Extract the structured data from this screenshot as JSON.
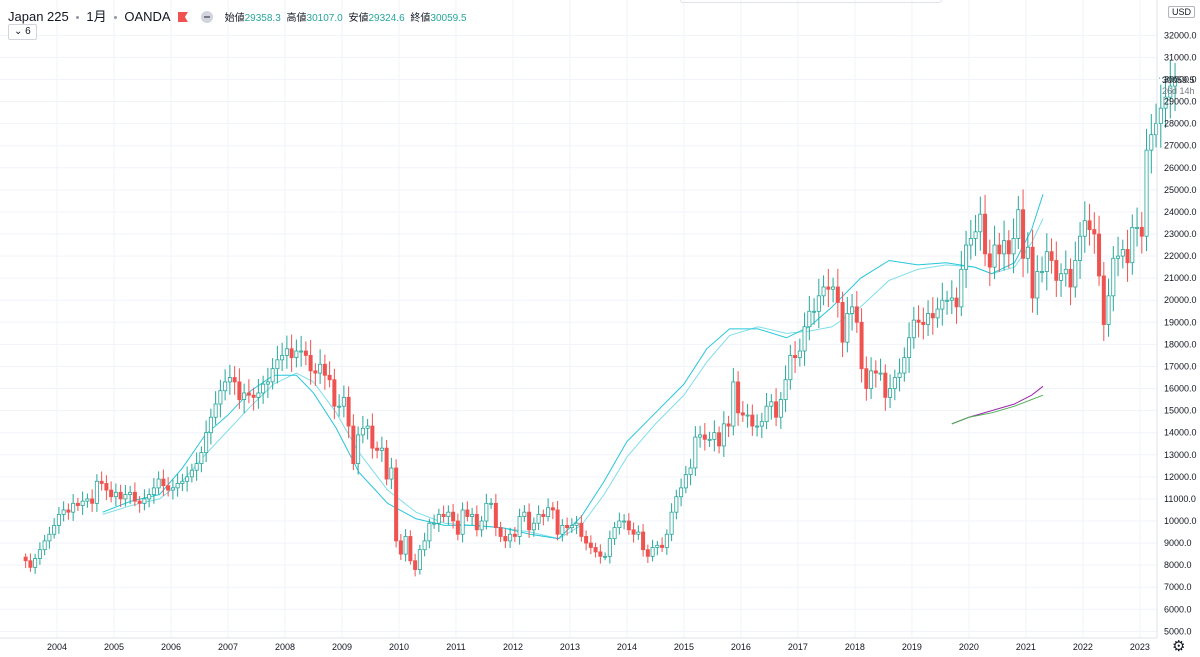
{
  "legend": {
    "symbol": "Japan 225",
    "interval": "1月",
    "broker": "OANDA",
    "open_label": "始値",
    "open_value": "29358.3",
    "high_label": "高値",
    "high_value": "30107.0",
    "low_label": "安値",
    "low_value": "29324.6",
    "close_label": "終値",
    "close_value": "30059.5"
  },
  "collapse_label": "6",
  "currency": "USD",
  "last_price": "30059.5",
  "countdown": "26d 14h",
  "colors": {
    "up": "#26a69a",
    "down": "#ef5350",
    "ma1": "#26c6da",
    "ma2": "#80deea",
    "green_ma": "#4caf50",
    "purple_ma": "#9c27b0",
    "grid": "#f0f3fa"
  },
  "chart_data": {
    "type": "candlestick",
    "x_ticks": [
      "2004",
      "2005",
      "2006",
      "2007",
      "2008",
      "2009",
      "2010",
      "2011",
      "2012",
      "2013",
      "2014",
      "2015",
      "2016",
      "2017",
      "2018",
      "2019",
      "2020",
      "2021",
      "2022",
      "2023"
    ],
    "y_ticks": [
      "5000.0",
      "6000.0",
      "7000.0",
      "8000.0",
      "9000.0",
      "10000.0",
      "11000.0",
      "12000.0",
      "13000.0",
      "14000.0",
      "15000.0",
      "16000.0",
      "17000.0",
      "18000.0",
      "19000.0",
      "20000.0",
      "21000.0",
      "22000.0",
      "23000.0",
      "24000.0",
      "25000.0",
      "26000.0",
      "27000.0",
      "28000.0",
      "29000.0",
      "30000.0",
      "31000.0",
      "32000.0"
    ],
    "ylim": [
      4700,
      33600
    ],
    "xlim": [
      2003.0,
      2023.3
    ],
    "closes": [
      8200,
      7900,
      8300,
      8700,
      9100,
      9400,
      9800,
      10300,
      10500,
      10400,
      10800,
      10700,
      10900,
      11000,
      10800,
      11800,
      11700,
      11400,
      11100,
      11300,
      11000,
      11200,
      11300,
      10900,
      10800,
      11000,
      11200,
      11500,
      11900,
      11600,
      11400,
      11500,
      11700,
      11800,
      12000,
      12300,
      12600,
      13100,
      14000,
      14700,
      15300,
      15900,
      16300,
      16500,
      16300,
      15500,
      15800,
      15700,
      15600,
      15800,
      16200,
      16300,
      16900,
      17300,
      17500,
      17800,
      17400,
      17700,
      17700,
      17500,
      16800,
      16700,
      17100,
      16600,
      16400,
      15200,
      15200,
      15600,
      14300,
      12600,
      13900,
      14200,
      14300,
      13300,
      13200,
      13300,
      11900,
      12400,
      9100,
      8500,
      9300,
      8200,
      7800,
      8700,
      9100,
      9900,
      9900,
      10300,
      10200,
      10400,
      10000,
      9400,
      10500,
      10200,
      10300,
      9600,
      10000,
      10800,
      10800,
      9700,
      9300,
      9100,
      9400,
      9300,
      10200,
      10400,
      9600,
      9900,
      10300,
      10200,
      10600,
      10500,
      9400,
      9800,
      9700,
      9800,
      9900,
      9300,
      9000,
      8800,
      8600,
      8400,
      8400,
      9200,
      9700,
      10000,
      10000,
      9600,
      9400,
      9500,
      8700,
      8400,
      8800,
      8900,
      8800,
      9400,
      10400,
      11100,
      11500,
      12100,
      12400,
      13800,
      13900,
      13700,
      13700,
      14000,
      13400,
      14400,
      14300,
      16300,
      14900,
      14800,
      14800,
      14300,
      14300,
      14500,
      15200,
      15400,
      14700,
      15500,
      16400,
      17500,
      17400,
      17700,
      18800,
      19500,
      19500,
      20200,
      20600,
      20500,
      20600,
      19900,
      18100,
      19400,
      19700,
      19000,
      16900,
      16000,
      16800,
      16700,
      16700,
      15600,
      16000,
      16500,
      16700,
      17400,
      18300,
      19100,
      19000,
      18900,
      19400,
      19200,
      19600,
      20000,
      20000,
      20100,
      19700,
      21400,
      22500,
      22800,
      23100,
      23900,
      22100,
      21500,
      22500,
      22100,
      22700,
      22100,
      22800,
      24100,
      21900,
      22400,
      20100,
      21300,
      21300,
      22200,
      21800,
      20900,
      21200,
      21400,
      20600,
      21800,
      22900,
      23600,
      23200,
      23000,
      21100,
      18900,
      20200,
      21900,
      22000,
      22300,
      21700,
      23300,
      23300,
      22900,
      26800,
      27500,
      28000,
      28700,
      29200,
      29700,
      30059.5
    ],
    "ma_fast": [
      [
        2004.8,
        10400
      ],
      [
        2005.3,
        10900
      ],
      [
        2005.8,
        11200
      ],
      [
        2006.2,
        12400
      ],
      [
        2006.6,
        13900
      ],
      [
        2007.0,
        14800
      ],
      [
        2007.4,
        15900
      ],
      [
        2007.8,
        16600
      ],
      [
        2008.2,
        16600
      ],
      [
        2008.5,
        15800
      ],
      [
        2008.9,
        14200
      ],
      [
        2009.3,
        12200
      ],
      [
        2009.8,
        10800
      ],
      [
        2010.3,
        10100
      ],
      [
        2010.8,
        9800
      ],
      [
        2011.3,
        9800
      ],
      [
        2011.8,
        9700
      ],
      [
        2012.3,
        9400
      ],
      [
        2012.8,
        9200
      ],
      [
        2013.2,
        10200
      ],
      [
        2013.6,
        11800
      ],
      [
        2014.0,
        13600
      ],
      [
        2014.5,
        14900
      ],
      [
        2015.0,
        16200
      ],
      [
        2015.4,
        17800
      ],
      [
        2015.8,
        18700
      ],
      [
        2016.3,
        18700
      ],
      [
        2016.8,
        18300
      ],
      [
        2017.2,
        18800
      ],
      [
        2017.6,
        19700
      ],
      [
        2018.1,
        21000
      ],
      [
        2018.6,
        21800
      ],
      [
        2019.1,
        21600
      ],
      [
        2019.6,
        21700
      ],
      [
        2020.1,
        21500
      ],
      [
        2020.4,
        21200
      ],
      [
        2020.8,
        21700
      ],
      [
        2021.1,
        23200
      ],
      [
        2021.3,
        24800
      ]
    ],
    "ma_slow": [
      [
        2004.8,
        10300
      ],
      [
        2005.3,
        10700
      ],
      [
        2005.8,
        11000
      ],
      [
        2006.2,
        11800
      ],
      [
        2006.6,
        13000
      ],
      [
        2007.0,
        14100
      ],
      [
        2007.4,
        15200
      ],
      [
        2007.8,
        16200
      ],
      [
        2008.2,
        16700
      ],
      [
        2008.5,
        16300
      ],
      [
        2008.9,
        14900
      ],
      [
        2009.3,
        13100
      ],
      [
        2009.8,
        11400
      ],
      [
        2010.3,
        10400
      ],
      [
        2010.8,
        9900
      ],
      [
        2011.3,
        9800
      ],
      [
        2011.8,
        9700
      ],
      [
        2012.3,
        9500
      ],
      [
        2012.8,
        9200
      ],
      [
        2013.2,
        9800
      ],
      [
        2013.6,
        11200
      ],
      [
        2014.0,
        12900
      ],
      [
        2014.5,
        14400
      ],
      [
        2015.0,
        15700
      ],
      [
        2015.4,
        17200
      ],
      [
        2015.8,
        18400
      ],
      [
        2016.3,
        18800
      ],
      [
        2016.8,
        18500
      ],
      [
        2017.2,
        18600
      ],
      [
        2017.6,
        18800
      ],
      [
        2018.1,
        19700
      ],
      [
        2018.6,
        20900
      ],
      [
        2019.1,
        21400
      ],
      [
        2019.6,
        21600
      ],
      [
        2020.1,
        21500
      ],
      [
        2020.4,
        21200
      ],
      [
        2020.8,
        21500
      ],
      [
        2021.1,
        22600
      ],
      [
        2021.3,
        23700
      ]
    ],
    "ma_purple": [
      [
        2019.7,
        14400
      ],
      [
        2020.0,
        14700
      ],
      [
        2020.4,
        15000
      ],
      [
        2020.8,
        15300
      ],
      [
        2021.1,
        15700
      ],
      [
        2021.3,
        16100
      ]
    ],
    "ma_green": [
      [
        2019.7,
        14400
      ],
      [
        2020.0,
        14700
      ],
      [
        2020.4,
        14900
      ],
      [
        2020.8,
        15200
      ],
      [
        2021.1,
        15500
      ],
      [
        2021.3,
        15700
      ]
    ]
  }
}
